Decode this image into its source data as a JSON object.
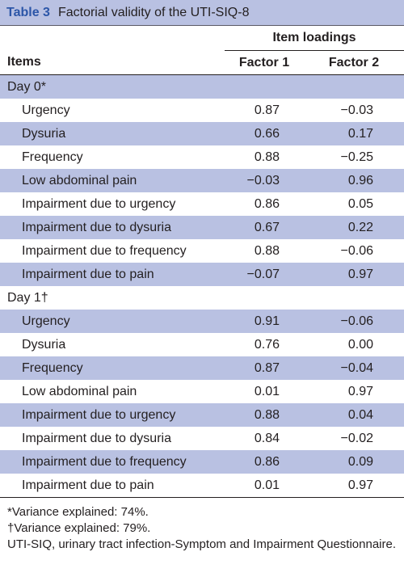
{
  "table_label": "Table 3",
  "table_title": "Factorial validity of the UTI-SIQ-8",
  "header": {
    "items": "Items",
    "group": "Item loadings",
    "factor1": "Factor 1",
    "factor2": "Factor 2"
  },
  "groups": [
    {
      "label": "Day 0*",
      "rows": [
        {
          "item": "Urgency",
          "f1": "0.87",
          "f2": "−0.03"
        },
        {
          "item": "Dysuria",
          "f1": "0.66",
          "f2": "0.17"
        },
        {
          "item": "Frequency",
          "f1": "0.88",
          "f2": "−0.25"
        },
        {
          "item": "Low abdominal pain",
          "f1": "−0.03",
          "f2": "0.96"
        },
        {
          "item": "Impairment due to urgency",
          "f1": "0.86",
          "f2": "0.05"
        },
        {
          "item": "Impairment due to dysuria",
          "f1": "0.67",
          "f2": "0.22"
        },
        {
          "item": "Impairment due to frequency",
          "f1": "0.88",
          "f2": "−0.06"
        },
        {
          "item": "Impairment due to pain",
          "f1": "−0.07",
          "f2": "0.97"
        }
      ]
    },
    {
      "label": "Day 1†",
      "rows": [
        {
          "item": "Urgency",
          "f1": "0.91",
          "f2": "−0.06"
        },
        {
          "item": "Dysuria",
          "f1": "0.76",
          "f2": "0.00"
        },
        {
          "item": "Frequency",
          "f1": "0.87",
          "f2": "−0.04"
        },
        {
          "item": "Low abdominal pain",
          "f1": "0.01",
          "f2": "0.97"
        },
        {
          "item": "Impairment due to urgency",
          "f1": "0.88",
          "f2": "0.04"
        },
        {
          "item": "Impairment due to dysuria",
          "f1": "0.84",
          "f2": "−0.02"
        },
        {
          "item": "Impairment due to frequency",
          "f1": "0.86",
          "f2": "0.09"
        },
        {
          "item": "Impairment due to pain",
          "f1": "0.01",
          "f2": "0.97"
        }
      ]
    }
  ],
  "notes": [
    "*Variance explained: 74%.",
    "†Variance explained: 79%.",
    "UTI-SIQ, urinary tract infection-Symptom and Impairment Questionnaire."
  ],
  "colors": {
    "shade": "#b9c1e2",
    "label": "#2c56a8"
  }
}
